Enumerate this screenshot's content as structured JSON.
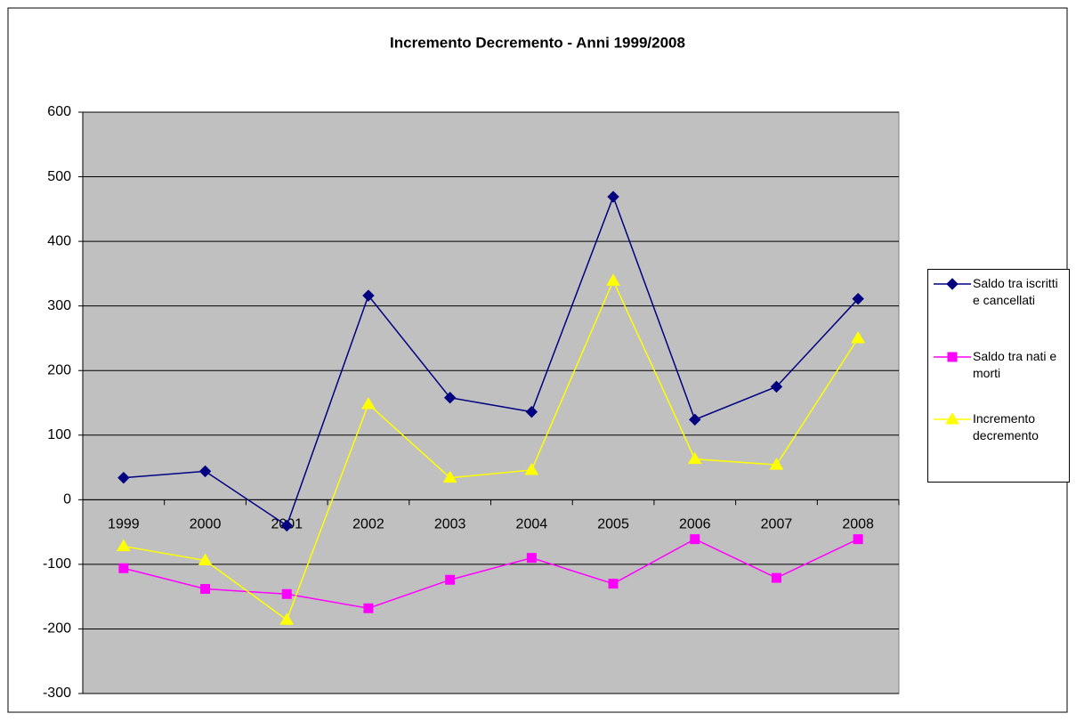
{
  "chart_data": {
    "type": "line",
    "title": "Incremento Decremento - Anni 1999/2008",
    "categories": [
      "1999",
      "2000",
      "2001",
      "2002",
      "2003",
      "2004",
      "2005",
      "2006",
      "2007",
      "2008"
    ],
    "series": [
      {
        "name": "Saldo tra iscritti e cancellati",
        "color": "#000080",
        "marker": "diamond",
        "values": [
          34,
          44,
          -40,
          316,
          158,
          136,
          469,
          124,
          175,
          311
        ]
      },
      {
        "name": "Saldo tra nati e morti",
        "color": "#ff00ff",
        "marker": "square",
        "values": [
          -106,
          -138,
          -146,
          -168,
          -124,
          -90,
          -130,
          -61,
          -121,
          -61
        ]
      },
      {
        "name": "Incremento decremento",
        "color": "#ffff00",
        "marker": "triangle",
        "values": [
          -72,
          -94,
          -186,
          148,
          34,
          46,
          339,
          63,
          54,
          250
        ]
      }
    ],
    "ylim": [
      -300,
      600
    ],
    "yticks": [
      -300,
      -200,
      -100,
      0,
      100,
      200,
      300,
      400,
      500,
      600
    ],
    "grid": true,
    "legend": "right"
  }
}
